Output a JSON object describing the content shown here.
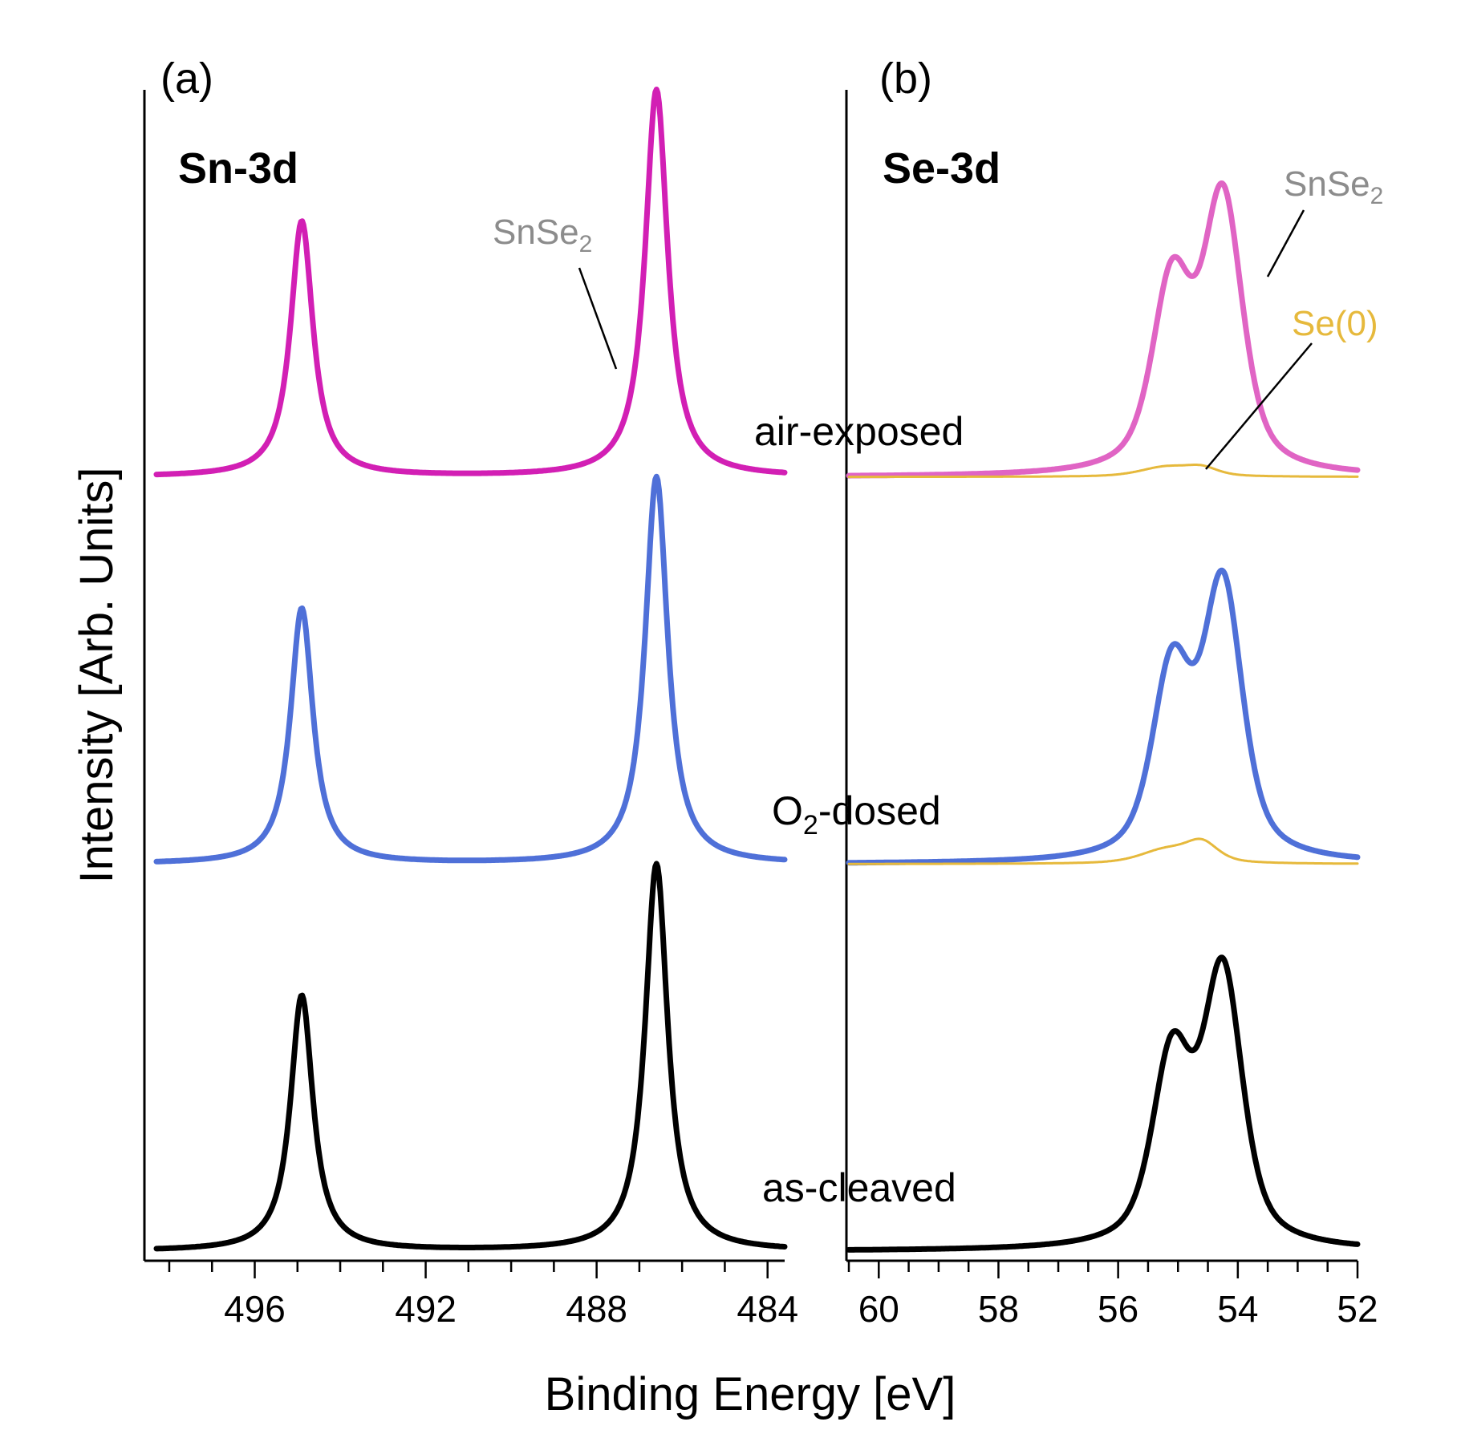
{
  "chart_data": [
    {
      "type": "line",
      "panel_label": "(a)",
      "title": "Sn-3d",
      "xlabel": "Binding Energy [eV]",
      "ylabel": "Intensity [Arb. Units]",
      "xlim": [
        498.3,
        483.6
      ],
      "ylim": [
        0,
        3.0
      ],
      "x_ticks": [
        496,
        492,
        488,
        484
      ],
      "x_tick_labels": [
        "496",
        "492",
        "488",
        "484"
      ],
      "minor_tick_step": 1,
      "series": [
        {
          "name": "as-cleaved",
          "color": "#000000",
          "offset": 0.0,
          "peaks": [
            {
              "center": 494.9,
              "height": 0.66,
              "width": 0.32
            },
            {
              "center": 486.6,
              "height": 1.0,
              "width": 0.32
            }
          ]
        },
        {
          "name": "O2-dosed",
          "color": "#4f70d8",
          "offset": 1.0,
          "peaks": [
            {
              "center": 494.9,
              "height": 0.66,
              "width": 0.32
            },
            {
              "center": 486.6,
              "height": 1.0,
              "width": 0.32
            }
          ]
        },
        {
          "name": "air-exposed",
          "color": "#d21fb4",
          "offset": 2.0,
          "peaks": [
            {
              "center": 494.9,
              "height": 0.66,
              "width": 0.32
            },
            {
              "center": 486.6,
              "height": 1.0,
              "width": 0.32
            }
          ]
        }
      ],
      "annotations": [
        {
          "text": "SnSe",
          "subscript": "2",
          "color": "#8c8c8c",
          "target_x": 487.3
        }
      ]
    },
    {
      "type": "line",
      "panel_label": "(b)",
      "title": "Se-3d",
      "xlabel": "Binding Energy [eV]",
      "xlim": [
        60.5,
        52.0
      ],
      "ylim": [
        0,
        3.0
      ],
      "x_ticks": [
        60,
        58,
        56,
        54,
        52
      ],
      "x_tick_labels": [
        "60",
        "58",
        "56",
        "54",
        "52"
      ],
      "minor_tick_step": 0.5,
      "series": [
        {
          "name": "as-cleaved",
          "color": "#000000",
          "offset": 0.0,
          "peaks": [
            {
              "center": 54.25,
              "height": 0.7,
              "width": 0.42
            },
            {
              "center": 55.1,
              "height": 0.48,
              "width": 0.42
            }
          ]
        },
        {
          "name": "O2-dosed",
          "color": "#4f70d8",
          "offset": 1.0,
          "peaks": [
            {
              "center": 54.25,
              "height": 0.7,
              "width": 0.42
            },
            {
              "center": 55.1,
              "height": 0.48,
              "width": 0.42
            }
          ]
        },
        {
          "name": "O2-dosed Se(0)",
          "color": "#e6b93c",
          "offset": 1.0,
          "peaks": [
            {
              "center": 55.2,
              "height": 0.035,
              "width": 0.55
            },
            {
              "center": 54.6,
              "height": 0.05,
              "width": 0.35
            }
          ]
        },
        {
          "name": "air-exposed",
          "color": "#e064c4",
          "offset": 2.0,
          "peaks": [
            {
              "center": 54.25,
              "height": 0.7,
              "width": 0.42
            },
            {
              "center": 55.1,
              "height": 0.48,
              "width": 0.42
            }
          ]
        },
        {
          "name": "air-exposed Se(0)",
          "color": "#e6b93c",
          "offset": 2.0,
          "peaks": [
            {
              "center": 55.2,
              "height": 0.025,
              "width": 0.55
            },
            {
              "center": 54.6,
              "height": 0.02,
              "width": 0.35
            }
          ]
        }
      ],
      "annotations": [
        {
          "text": "SnSe",
          "subscript": "2",
          "color": "#8c8c8c",
          "target_x": 53.6
        },
        {
          "text": "Se(0)",
          "subscript": "",
          "color": "#e6b93c",
          "target_x": 54.6
        }
      ]
    }
  ],
  "trace_labels": {
    "air_exposed": "air-exposed",
    "o2_dosed_prefix": "O",
    "o2_dosed_sub": "2",
    "o2_dosed_suffix": "-dosed",
    "as_cleaved": "as-cleaved"
  },
  "annotation_text": {
    "snse2_main": "SnSe",
    "snse2_sub": "2",
    "se0": "Se(0)"
  }
}
